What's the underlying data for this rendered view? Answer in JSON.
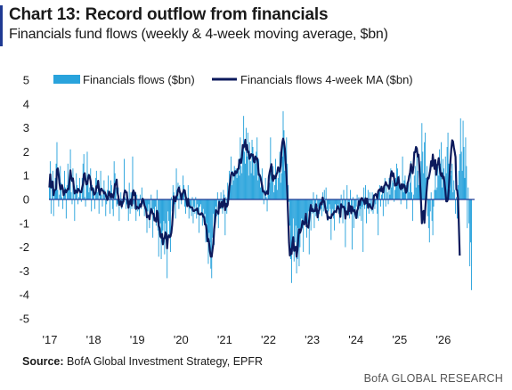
{
  "header": {
    "title": "Chart 13: Record outflow from financials",
    "subtitle": "Financials fund flows (weekly & 4-week moving average, $bn)"
  },
  "footer": {
    "source_label": "Source:",
    "source_text": "BofA Global Investment Strategy, EPFR",
    "brand": "BofA GLOBAL RESEARCH"
  },
  "colors": {
    "bars": "#29a3dc",
    "ma_line": "#0c1a5c",
    "zero_line": "#1f3a93",
    "title_accent": "#1f3a93"
  },
  "chart_data": {
    "type": "bar",
    "legend_position": "top-left",
    "grid": false,
    "ylim": [
      -5,
      5
    ],
    "yticks": [
      "5",
      "4",
      "3",
      "2",
      "1",
      "0",
      "-1",
      "-2",
      "-3",
      "-4",
      "-5"
    ],
    "xticks": [
      "'17",
      "'18",
      "'19",
      "'20",
      "'21",
      "'22",
      "'23",
      "'24",
      "'25",
      "'26"
    ],
    "x_start_year": 2017,
    "series": [
      {
        "name": "Financials flows ($bn)",
        "kind": "bar",
        "values": [
          0.5,
          1.6,
          -0.6,
          0.8,
          1.2,
          -0.7,
          0.2,
          0.9,
          1.5,
          2.4,
          0.4,
          -0.3,
          0.2,
          1.4,
          0.7,
          0.1,
          -0.4,
          0.3,
          1.2,
          0.5,
          -0.8,
          0.6,
          1.5,
          0.4,
          0.9,
          2.1,
          0.3,
          -0.2,
          1.3,
          0.8,
          -0.9,
          0.3,
          1.1,
          0.6,
          -0.2,
          0.1,
          0.9,
          0.3,
          -0.1,
          0.9,
          1.5,
          1.9,
          0.1,
          -0.3,
          0.8,
          2.0,
          1.0,
          0.3,
          0.5,
          1.3,
          -0.5,
          0.6,
          0.2,
          0.5,
          -0.4,
          0.9,
          1.2,
          0.3,
          0.7,
          -0.6,
          0.4,
          1.2,
          0.2,
          -0.3,
          0.3,
          0.8,
          0.4,
          -0.7,
          -0.2,
          0.4,
          1.0,
          0.1,
          -0.6,
          0.8,
          0.6,
          -0.4,
          -0.7,
          1.6,
          1.1,
          0.5,
          -0.3,
          -0.2,
          0.5,
          -0.9,
          -0.2,
          0.3,
          -0.4,
          -0.1,
          -0.2,
          1.7,
          0.1,
          -0.4,
          -0.2,
          0.1,
          -0.9,
          0.7,
          -0.6,
          0.3,
          -0.4,
          1.8,
          -0.2,
          -0.4,
          -0.1,
          -0.9,
          0.2,
          -0.5,
          -0.3,
          -0.7,
          0.2,
          -0.4,
          0.5,
          -0.2,
          -0.1,
          -0.7,
          -0.3,
          -0.6,
          -1.4,
          -0.5,
          -0.2,
          -1.2,
          -0.4,
          0.2,
          -0.6,
          -1.6,
          -0.4,
          -0.9,
          -0.3,
          -1.1,
          0.4,
          -1.3,
          -2.4,
          -1.5,
          -1.0,
          -2.5,
          -1.8,
          -1.3,
          -0.9,
          -2.3,
          -1.0,
          -1.6,
          -3.3,
          -0.5,
          -0.9,
          -1.6,
          -2.2,
          0.1,
          -0.5,
          0.6,
          0.3,
          -0.2,
          -0.8,
          1.3,
          0.4,
          0.7,
          -0.4,
          0.6,
          0.1,
          -0.2,
          0.2,
          1.0,
          0.6,
          -0.3,
          -0.6,
          0.1,
          -0.2,
          0.6,
          -0.8,
          -0.4,
          -0.3,
          -0.7,
          0.1,
          -1.0,
          -0.3,
          -0.6,
          0.1,
          -0.8,
          -0.2,
          -0.5,
          -1.4,
          -0.3,
          -0.2,
          -0.6,
          -1.1,
          -0.4,
          -0.8,
          -0.6,
          -1.8,
          -1.0,
          -1.5,
          -2.7,
          -1.4,
          -1.8,
          -2.9,
          -3.3,
          -1.6,
          -0.6,
          -1.9,
          -0.9,
          -0.3,
          -0.7,
          0.3,
          -1.2,
          -0.4,
          -0.1,
          0.3,
          -0.4,
          -0.6,
          0.4,
          0.2,
          -1.5,
          0.1,
          -0.6,
          0.7,
          0.2,
          1.2,
          0.9,
          1.8,
          0.6,
          1.2,
          0.8,
          1.4,
          1.1,
          1.3,
          0.9,
          1.2,
          1.7,
          1.0,
          2.6,
          1.4,
          1.1,
          2.1,
          3.5,
          2.0,
          1.5,
          3.0,
          1.8,
          2.8,
          1.0,
          2.4,
          1.6,
          1.1,
          2.5,
          2.2,
          1.0,
          1.7,
          1.5,
          2.0,
          2.6,
          0.8,
          1.7,
          1.1,
          0.5,
          0.8,
          1.3,
          0.4,
          -0.2,
          0.3,
          0.9,
          0.1,
          -0.5,
          0.6,
          0.2,
          0.7,
          2.6,
          1.1,
          0.8,
          1.4,
          0.3,
          0.6,
          1.7,
          0.9,
          0.4,
          0.9,
          1.2,
          2.0,
          0.7,
          1.1,
          1.8,
          3.7,
          2.9,
          1.2,
          1.8,
          2.6,
          1.5,
          0.6,
          -0.1,
          -1.1,
          -2.5,
          -3.5,
          -2.2,
          -0.8,
          -2.6,
          -1.8,
          -1.1,
          -3.1,
          -2.5,
          -1.2,
          -2.8,
          -2.0,
          -1.4,
          -0.8,
          -1.2,
          -2.2,
          -1.0,
          -0.6,
          -1.0,
          -1.6,
          -1.0,
          -0.5,
          -2.3,
          -0.7,
          -1.3,
          -0.2,
          -0.6,
          0.3,
          -1.2,
          -0.4,
          -0.7,
          0.2,
          -0.3,
          -0.9,
          -0.6,
          -0.1,
          -0.4,
          -0.7,
          0.3,
          -0.5,
          0.4,
          -0.2,
          0.5,
          -0.4,
          -0.9,
          -0.5,
          -0.2,
          -0.4,
          -1.7,
          -0.6,
          -0.4,
          -0.8,
          -1.3,
          -0.2,
          -0.5,
          -0.3,
          -0.2,
          -0.6,
          -1.0,
          -0.4,
          0.2,
          -0.3,
          -1.0,
          0.4,
          -0.3,
          -2.0,
          -0.5,
          0.6,
          -0.2,
          -0.4,
          -0.8,
          0.4,
          -0.5,
          -2.1,
          0.1,
          -1.2,
          -0.4,
          -0.6,
          -0.3,
          0.2,
          -0.8,
          0.1,
          -0.7,
          -0.4,
          -0.9,
          -0.3,
          -2.2,
          0.5,
          -0.4,
          0.6,
          -1.0,
          -0.1,
          0.4,
          -0.6,
          0.3,
          -0.2,
          -0.5,
          0.3,
          -0.6,
          -0.1,
          -0.4,
          -0.2,
          0.1,
          -0.6,
          -1.5,
          0.3,
          0.6,
          -0.3,
          0.2,
          0.4,
          -0.7,
          0.6,
          0.9,
          -0.3,
          0.7,
          0.3,
          -0.2,
          0.9,
          0.2,
          1.3,
          0.5,
          0.8,
          0.7,
          -0.1,
          0.4,
          0.9,
          1.5,
          1.3,
          0.7,
          1.0,
          0.4,
          -0.2,
          0.6,
          1.8,
          0.3,
          0.8,
          1.0,
          0.6,
          -0.4,
          0.5,
          1.0,
          0.3,
          0.7,
          1.6,
          0.3,
          -0.9,
          0.2,
          1.0,
          1.4,
          0.5,
          1.8,
          1.2,
          0.6,
          1.5,
          1.1,
          1.6,
          3.2,
          2.0,
          1.1,
          2.4,
          2.8,
          0.9,
          1.4,
          -0.7,
          -1.2,
          -1.8,
          -0.5,
          0.3,
          -0.9,
          -1.5,
          -0.3,
          0.4,
          1.2,
          0.4,
          0.5,
          1.4,
          1.0,
          2.1,
          1.5,
          2.4,
          0.5,
          1.7,
          1.3,
          0.8,
          1.8,
          1.1,
          2.2,
          2.8,
          1.5,
          0.4,
          1.0,
          1.2,
          1.5,
          0.3,
          0.8,
          0.4,
          -0.6,
          0.1,
          -0.8,
          0.6,
          1.2,
          1.9,
          3.4,
          2.0,
          1.2,
          3.3,
          2.2,
          0.9,
          2.6,
          1.4,
          -1.2,
          0.5,
          -1.0,
          -2.8,
          -1.8,
          -3.8
        ]
      },
      {
        "name": "Financials flows 4-week MA ($bn)",
        "kind": "line",
        "values": [
          0.5,
          1.05,
          0.5,
          0.58,
          0.75,
          0.18,
          0.38,
          0.4,
          0.45,
          1.25,
          1.3,
          1.05,
          0.68,
          0.43,
          0.45,
          0.6,
          0.45,
          0.18,
          0.3,
          0.4,
          0.3,
          0.38,
          0.45,
          0.43,
          0.85,
          1.22,
          0.93,
          0.78,
          0.88,
          0.55,
          0.25,
          0.38,
          0.33,
          0.28,
          0.45,
          0.4,
          0.35,
          0.3,
          0.3,
          0.5,
          0.65,
          1.05,
          1.1,
          0.8,
          0.63,
          0.65,
          0.88,
          1.03,
          0.95,
          0.78,
          0.4,
          0.48,
          0.4,
          0.2,
          0.23,
          0.3,
          0.55,
          0.5,
          0.78,
          0.4,
          0.2,
          0.43,
          0.45,
          0.38,
          0.35,
          0.25,
          0.3,
          0.2,
          0.08,
          -0.02,
          0.15,
          0.33,
          0.23,
          0.08,
          0.23,
          0.1,
          0.08,
          0.32,
          0.65,
          0.63,
          0.83,
          0.28,
          0.13,
          -0.23,
          -0.2,
          -0.08,
          -0.3,
          -0.1,
          -0.1,
          0.25,
          0.38,
          0.3,
          0.3,
          -0.1,
          -0.35,
          -0.08,
          -0.18,
          0.0,
          -0.25,
          0.28,
          0.38,
          0.18,
          0.28,
          -0.4,
          -0.3,
          -0.33,
          -0.38,
          -0.33,
          -0.2,
          -0.3,
          -0.1,
          0.03,
          -0.05,
          -0.25,
          -0.33,
          -0.43,
          -0.75,
          -0.7,
          -0.68,
          -0.83,
          -0.58,
          -0.4,
          -0.5,
          -0.6,
          -0.6,
          -0.88,
          -0.8,
          -0.93,
          -0.48,
          -0.58,
          -1.1,
          -1.2,
          -1.55,
          -1.6,
          -1.45,
          -1.88,
          -1.63,
          -1.63,
          -1.38,
          -1.45,
          -2.05,
          -1.6,
          -1.5,
          -1.58,
          -1.55,
          -1.4,
          -1.07,
          -0.5,
          0.13,
          0.05,
          -0.08,
          0.13,
          0.18,
          0.4,
          0.5,
          0.33,
          0.23,
          0.0,
          0.2,
          0.3,
          0.4,
          0.38,
          0.13,
          -0.03,
          -0.28,
          0.03,
          -0.25,
          -0.3,
          -0.33,
          -0.33,
          -0.35,
          -0.48,
          -0.48,
          -0.45,
          -0.45,
          -0.4,
          -0.38,
          -0.6,
          -0.6,
          -0.63,
          -0.63,
          -0.57,
          -0.6,
          -0.73,
          -0.73,
          -1.05,
          -1.05,
          -1.28,
          -1.75,
          -1.65,
          -1.85,
          -2.2,
          -2.4,
          -2.4,
          -2.1,
          -1.85,
          -1.25,
          -0.93,
          -0.45,
          -0.5,
          -0.53,
          -0.6,
          -0.1,
          -0.35,
          -0.28,
          -0.1,
          -0.32,
          -0.1,
          0.03,
          -0.45,
          -0.18,
          -0.3,
          -0.23,
          0.1,
          0.53,
          0.73,
          1.03,
          1.13,
          1.1,
          1.0,
          1.0,
          1.18,
          1.1,
          1.13,
          1.28,
          1.28,
          1.65,
          1.68,
          1.53,
          1.8,
          2.28,
          2.18,
          2.28,
          2.5,
          2.08,
          2.28,
          1.98,
          2.0,
          1.7,
          1.78,
          1.9,
          1.85,
          1.88,
          1.6,
          1.55,
          1.8,
          1.7,
          1.73,
          1.5,
          1.03,
          1.03,
          0.93,
          0.75,
          0.58,
          0.33,
          0.35,
          0.28,
          0.2,
          0.28,
          0.35,
          0.23,
          0.95,
          1.15,
          1.3,
          1.48,
          0.9,
          0.78,
          1.0,
          0.88,
          0.9,
          1.05,
          1.13,
          1.35,
          1.28,
          1.17,
          1.4,
          2.05,
          2.38,
          2.55,
          2.4,
          2.13,
          1.53,
          0.95,
          0.18,
          -0.78,
          -1.8,
          -2.35,
          -2.08,
          -2.28,
          -1.85,
          -1.58,
          -2.15,
          -2.13,
          -1.98,
          -2.4,
          -2.13,
          -1.6,
          -1.25,
          -1.4,
          -1.3,
          -1.15,
          -0.9,
          -0.95,
          -1.05,
          -0.93,
          -0.6,
          -1.13,
          -1.13,
          -1.18,
          -0.83,
          -0.45,
          -0.23,
          -0.48,
          -0.4,
          -0.5,
          -0.48,
          -0.48,
          -0.2,
          -0.4,
          -0.75,
          -0.5,
          -0.43,
          -0.2,
          -0.13,
          -0.2,
          0.08,
          -0.1,
          -0.08,
          -0.34,
          -0.55,
          -0.5,
          -0.83,
          -0.73,
          -0.75,
          -0.78,
          -0.78,
          -0.62,
          -0.65,
          -0.57,
          -0.5,
          -0.5,
          -0.53,
          -0.38,
          -0.28,
          -0.38,
          -0.43,
          -0.73,
          -0.2,
          -0.3,
          -0.33,
          -0.3,
          -0.37,
          -0.8,
          -0.5,
          -0.55,
          -0.63,
          -0.15,
          -0.48,
          -0.28,
          -0.58,
          -0.3,
          -0.45,
          -0.5,
          -0.45,
          -0.63,
          -0.78,
          -0.48,
          -0.38,
          -0.08,
          -0.23,
          -0.03,
          0.05,
          0.05,
          -0.05,
          -0.05,
          -0.2,
          0.05,
          -0.15,
          0.03,
          -0.35,
          -0.2,
          -0.2,
          -0.33,
          -0.37,
          -0.4,
          -0.24,
          0.17,
          0.18,
          0.23,
          0.15,
          0.05,
          0.33,
          0.4,
          0.43,
          0.35,
          0.53,
          0.33,
          0.3,
          0.55,
          0.6,
          0.73,
          0.63,
          0.58,
          0.57,
          0.45,
          0.68,
          1.03,
          1.18,
          0.98,
          1.1,
          0.88,
          0.58,
          0.65,
          0.6,
          0.73,
          0.93,
          0.68,
          0.5,
          0.43,
          0.64,
          0.47,
          0.62,
          0.6,
          0.48,
          0.28,
          0.35,
          0.68,
          0.78,
          0.98,
          1.15,
          1.48,
          1.3,
          1.1,
          1.4,
          1.98,
          1.98,
          2.2,
          2.13,
          1.8,
          1.88,
          1.38,
          0.6,
          -0.12,
          -1.0,
          -0.55,
          -0.48,
          -0.98,
          -0.4,
          0.1,
          0.53,
          0.9,
          0.88,
          1.05,
          1.25,
          1.6,
          1.4,
          1.88,
          1.5,
          1.28,
          1.65,
          1.03,
          1.43,
          1.48,
          1.73,
          1.38,
          1.1,
          0.98,
          1.1,
          0.88,
          0.95,
          0.7,
          0.33,
          -0.08,
          -0.08,
          0.02,
          0.45,
          1.1,
          1.63,
          2.13,
          2.48,
          2.43,
          2.18,
          2.0,
          1.78,
          0.43,
          0.38,
          0.05,
          -1.13,
          -2.35
        ]
      }
    ]
  }
}
